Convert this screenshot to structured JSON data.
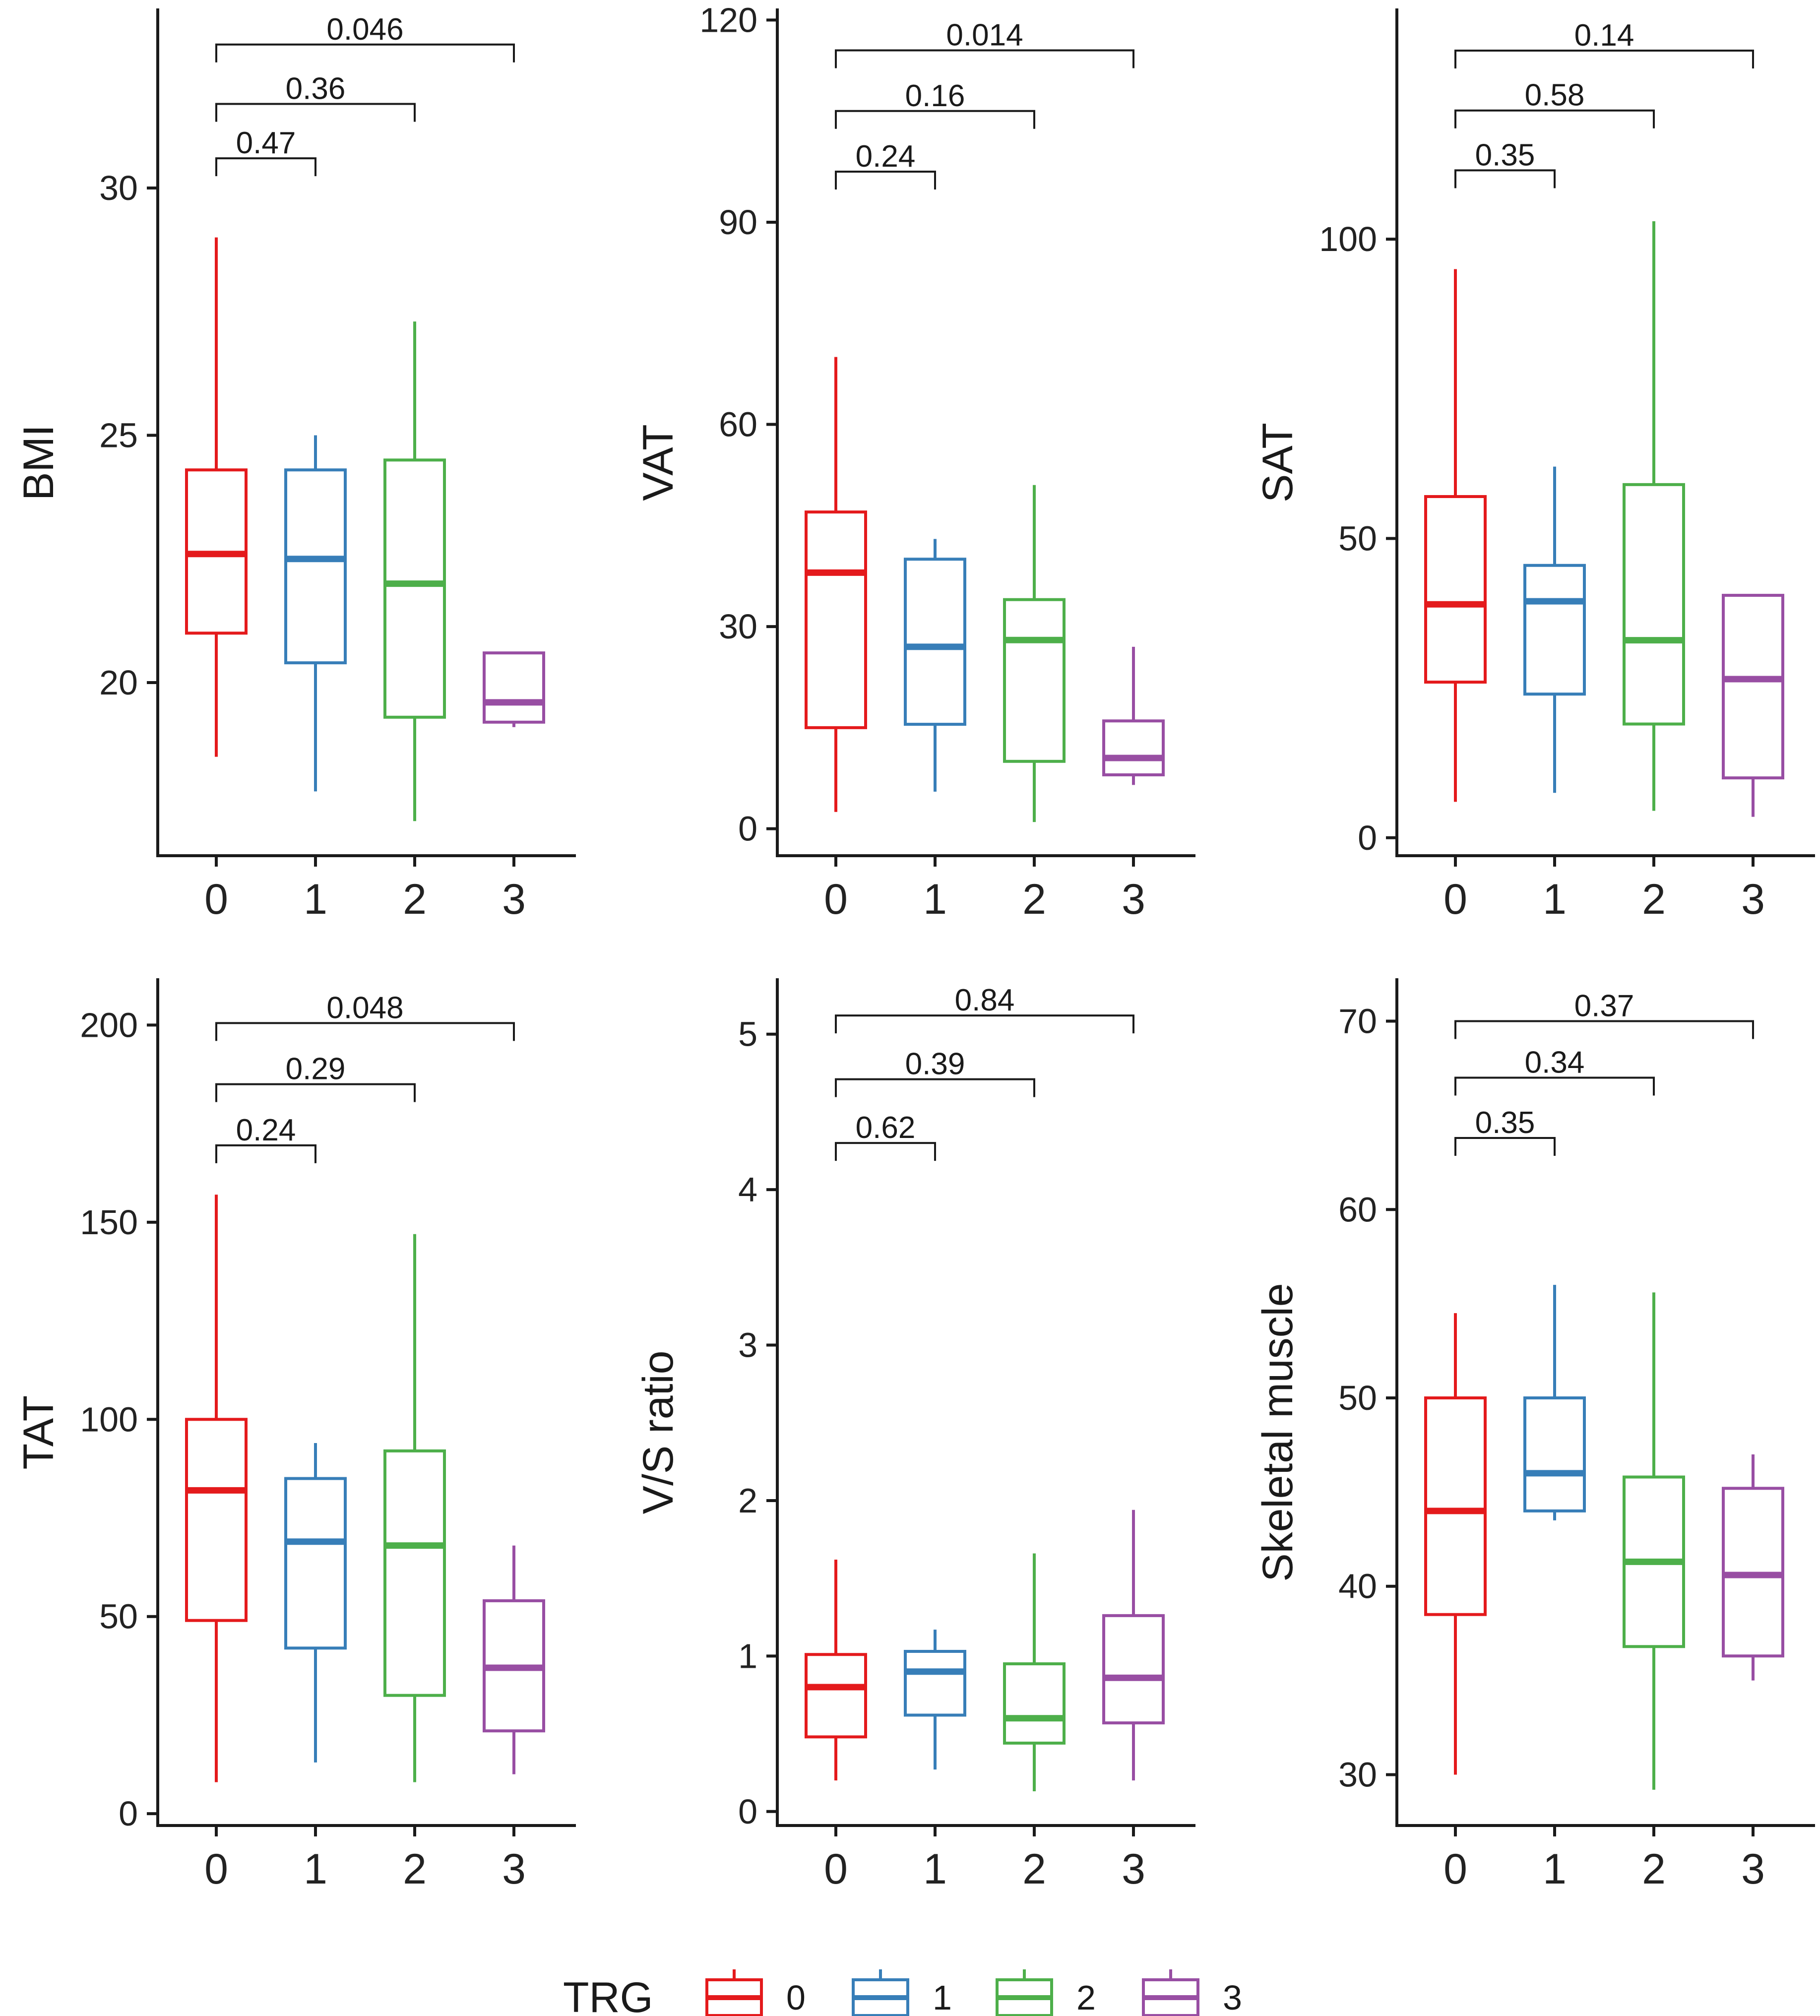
{
  "colors": {
    "0": "#e41a1c",
    "1": "#377eb8",
    "2": "#4daf4a",
    "3": "#984ea3"
  },
  "legend": {
    "title": "TRG",
    "items": [
      "0",
      "1",
      "2",
      "3"
    ]
  },
  "chart_data": [
    {
      "type": "boxplot",
      "ylabel": "BMI",
      "categories": [
        "0",
        "1",
        "2",
        "3"
      ],
      "yticks": [
        20,
        25,
        30
      ],
      "ylim": [
        16.5,
        33.6
      ],
      "boxes": [
        {
          "group": "0",
          "min": 18.5,
          "q1": 21.0,
          "median": 22.6,
          "q3": 24.3,
          "max": 29.0
        },
        {
          "group": "1",
          "min": 17.8,
          "q1": 20.4,
          "median": 22.5,
          "q3": 24.3,
          "max": 25.0
        },
        {
          "group": "2",
          "min": 17.2,
          "q1": 19.3,
          "median": 22.0,
          "q3": 24.5,
          "max": 27.3
        },
        {
          "group": "3",
          "min": 19.1,
          "q1": 19.2,
          "median": 19.6,
          "q3": 20.6,
          "max": 20.6
        }
      ],
      "comparisons": [
        {
          "from": "0",
          "to": "1",
          "p": "0.47",
          "y": 30.6
        },
        {
          "from": "0",
          "to": "2",
          "p": "0.36",
          "y": 31.7
        },
        {
          "from": "0",
          "to": "3",
          "p": "0.046",
          "y": 32.9
        }
      ]
    },
    {
      "type": "boxplot",
      "ylabel": "VAT",
      "categories": [
        "0",
        "1",
        "2",
        "3"
      ],
      "yticks": [
        0,
        30,
        60,
        90,
        120
      ],
      "ylim": [
        -4,
        121.5
      ],
      "boxes": [
        {
          "group": "0",
          "min": 2.5,
          "q1": 15.0,
          "median": 38.0,
          "q3": 47.0,
          "max": 70.0
        },
        {
          "group": "1",
          "min": 5.5,
          "q1": 15.5,
          "median": 27.0,
          "q3": 40.0,
          "max": 43.0
        },
        {
          "group": "2",
          "min": 1.0,
          "q1": 10.0,
          "median": 28.0,
          "q3": 34.0,
          "max": 51.0
        },
        {
          "group": "3",
          "min": 6.5,
          "q1": 8.0,
          "median": 10.5,
          "q3": 16.0,
          "max": 27.0
        }
      ],
      "comparisons": [
        {
          "from": "0",
          "to": "1",
          "p": "0.24",
          "y": 97.5
        },
        {
          "from": "0",
          "to": "2",
          "p": "0.16",
          "y": 106.5
        },
        {
          "from": "0",
          "to": "3",
          "p": "0.014",
          "y": 115.5
        }
      ]
    },
    {
      "type": "boxplot",
      "ylabel": "SAT",
      "categories": [
        "0",
        "1",
        "2",
        "3"
      ],
      "yticks": [
        0,
        50,
        100
      ],
      "ylim": [
        -3,
        138.3
      ],
      "boxes": [
        {
          "group": "0",
          "min": 6.0,
          "q1": 26.0,
          "median": 39.0,
          "q3": 57.0,
          "max": 95.0
        },
        {
          "group": "1",
          "min": 7.5,
          "q1": 24.0,
          "median": 39.5,
          "q3": 45.5,
          "max": 62.0
        },
        {
          "group": "2",
          "min": 4.5,
          "q1": 19.0,
          "median": 33.0,
          "q3": 59.0,
          "max": 103.0
        },
        {
          "group": "3",
          "min": 3.5,
          "q1": 10.0,
          "median": 26.5,
          "q3": 40.5,
          "max": 40.5
        }
      ],
      "comparisons": [
        {
          "from": "0",
          "to": "1",
          "p": "0.35",
          "y": 111.5
        },
        {
          "from": "0",
          "to": "2",
          "p": "0.58",
          "y": 121.5
        },
        {
          "from": "0",
          "to": "3",
          "p": "0.14",
          "y": 131.5
        }
      ]
    },
    {
      "type": "boxplot",
      "ylabel": "TAT",
      "categories": [
        "0",
        "1",
        "2",
        "3"
      ],
      "yticks": [
        0,
        50,
        100,
        150,
        200
      ],
      "ylim": [
        -3,
        211.5
      ],
      "boxes": [
        {
          "group": "0",
          "min": 8.0,
          "q1": 49.0,
          "median": 82.0,
          "q3": 100.0,
          "max": 157.0
        },
        {
          "group": "1",
          "min": 13.0,
          "q1": 42.0,
          "median": 69.0,
          "q3": 85.0,
          "max": 94.0
        },
        {
          "group": "2",
          "min": 8.0,
          "q1": 30.0,
          "median": 68.0,
          "q3": 92.0,
          "max": 147.0
        },
        {
          "group": "3",
          "min": 10.0,
          "q1": 21.0,
          "median": 37.0,
          "q3": 54.0,
          "max": 68.0
        }
      ],
      "comparisons": [
        {
          "from": "0",
          "to": "1",
          "p": "0.24",
          "y": 169.5
        },
        {
          "from": "0",
          "to": "2",
          "p": "0.29",
          "y": 185.0
        },
        {
          "from": "0",
          "to": "3",
          "p": "0.048",
          "y": 200.5
        }
      ]
    },
    {
      "type": "boxplot",
      "ylabel": "V/S ratio",
      "categories": [
        "0",
        "1",
        "2",
        "3"
      ],
      "yticks": [
        0,
        1,
        2,
        3,
        4,
        5
      ],
      "ylim": [
        -0.09,
        5.35
      ],
      "boxes": [
        {
          "group": "0",
          "min": 0.2,
          "q1": 0.48,
          "median": 0.8,
          "q3": 1.01,
          "max": 1.62
        },
        {
          "group": "1",
          "min": 0.27,
          "q1": 0.62,
          "median": 0.9,
          "q3": 1.03,
          "max": 1.17
        },
        {
          "group": "2",
          "min": 0.13,
          "q1": 0.44,
          "median": 0.6,
          "q3": 0.95,
          "max": 1.66
        },
        {
          "group": "3",
          "min": 0.2,
          "q1": 0.57,
          "median": 0.86,
          "q3": 1.26,
          "max": 1.94
        }
      ],
      "comparisons": [
        {
          "from": "0",
          "to": "1",
          "p": "0.62",
          "y": 4.3
        },
        {
          "from": "0",
          "to": "2",
          "p": "0.39",
          "y": 4.71
        },
        {
          "from": "0",
          "to": "3",
          "p": "0.84",
          "y": 5.12
        }
      ]
    },
    {
      "type": "boxplot",
      "ylabel": "Skeletal muscle",
      "categories": [
        "0",
        "1",
        "2",
        "3"
      ],
      "yticks": [
        30,
        40,
        50,
        60,
        70
      ],
      "ylim": [
        27.3,
        72.2
      ],
      "boxes": [
        {
          "group": "0",
          "min": 30.0,
          "q1": 38.5,
          "median": 44.0,
          "q3": 50.0,
          "max": 54.5
        },
        {
          "group": "1",
          "min": 43.5,
          "q1": 44.0,
          "median": 46.0,
          "q3": 50.0,
          "max": 56.0
        },
        {
          "group": "2",
          "min": 29.2,
          "q1": 36.8,
          "median": 41.3,
          "q3": 45.8,
          "max": 55.6
        },
        {
          "group": "3",
          "min": 35.0,
          "q1": 36.3,
          "median": 40.6,
          "q3": 45.2,
          "max": 47.0
        }
      ],
      "comparisons": [
        {
          "from": "0",
          "to": "1",
          "p": "0.35",
          "y": 63.8
        },
        {
          "from": "0",
          "to": "2",
          "p": "0.34",
          "y": 67.0
        },
        {
          "from": "0",
          "to": "3",
          "p": "0.37",
          "y": 70.0
        }
      ]
    }
  ]
}
